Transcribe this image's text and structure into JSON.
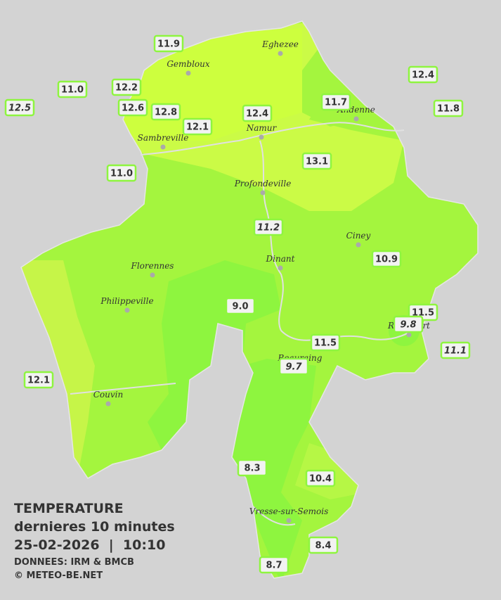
{
  "legend": {
    "title": "TEMPERATURE",
    "subtitle": "dernieres 10 minutes",
    "datetime": "25-02-2026  |  10:10",
    "source": "DONNEES: IRM & BMCB",
    "copyright": "© METEO-BE.NET"
  },
  "cities": [
    "Eghezee",
    "Gembloux",
    "Andenne",
    "Namur",
    "Sambreville",
    "Profondeville",
    "Ciney",
    "Dinant",
    "Florennes",
    "Philippeville",
    "Rochefort",
    "Beauraing",
    "Couvin",
    "Vresse-sur-Semois"
  ],
  "stations": [
    {
      "label": "11.9",
      "italic": false
    },
    {
      "label": "12.2",
      "italic": false
    },
    {
      "label": "11.0",
      "italic": false
    },
    {
      "label": "12.5",
      "italic": true
    },
    {
      "label": "12.6",
      "italic": false
    },
    {
      "label": "12.8",
      "italic": false
    },
    {
      "label": "12.1",
      "italic": false
    },
    {
      "label": "12.4",
      "italic": false
    },
    {
      "label": "11.7",
      "italic": false
    },
    {
      "label": "12.4",
      "italic": false
    },
    {
      "label": "11.8",
      "italic": false
    },
    {
      "label": "13.1",
      "italic": false
    },
    {
      "label": "11.0",
      "italic": false
    },
    {
      "label": "11.2",
      "italic": true
    },
    {
      "label": "10.9",
      "italic": false
    },
    {
      "label": "9.0",
      "italic": false
    },
    {
      "label": "11.5",
      "italic": false
    },
    {
      "label": "9.8",
      "italic": true
    },
    {
      "label": "11.5",
      "italic": false
    },
    {
      "label": "11.1",
      "italic": true
    },
    {
      "label": "9.7",
      "italic": true
    },
    {
      "label": "12.1",
      "italic": false
    },
    {
      "label": "8.3",
      "italic": false
    },
    {
      "label": "10.4",
      "italic": false
    },
    {
      "label": "8.4",
      "italic": false
    },
    {
      "label": "8.7",
      "italic": false
    }
  ]
}
